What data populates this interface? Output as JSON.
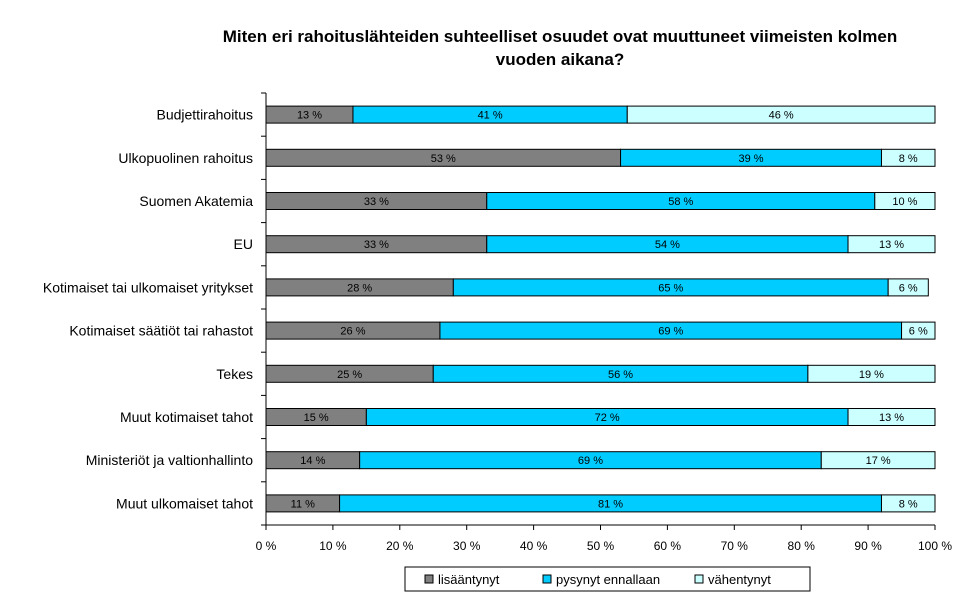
{
  "chart_data": {
    "type": "bar",
    "orientation": "horizontal",
    "stacked": true,
    "title_lines": [
      "Miten eri rahoituslähteiden suhteelliset osuudet ovat muuttuneet viimeisten kolmen",
      "vuoden aikana?"
    ],
    "categories": [
      "Budjettirahoitus",
      "Ulkopuolinen rahoitus",
      "Suomen Akatemia",
      "EU",
      "Kotimaiset tai ulkomaiset yritykset",
      "Kotimaiset säätiöt tai rahastot",
      "Tekes",
      "Muut kotimaiset tahot",
      "Ministeriöt ja valtionhallinto",
      "Muut ulkomaiset tahot"
    ],
    "series": [
      {
        "name": "lisääntynyt",
        "color": "#808080",
        "values": [
          13,
          53,
          33,
          33,
          28,
          26,
          25,
          15,
          14,
          11
        ]
      },
      {
        "name": "pysynyt ennallaan",
        "color": "#00ccff",
        "values": [
          41,
          39,
          58,
          54,
          65,
          69,
          56,
          72,
          69,
          81
        ]
      },
      {
        "name": "vähentynyt",
        "color": "#ccffff",
        "values": [
          46,
          8,
          10,
          13,
          6,
          6,
          19,
          13,
          17,
          8
        ]
      }
    ],
    "xlim": [
      0,
      100
    ],
    "xticks": [
      "0 %",
      "10 %",
      "20 %",
      "30 %",
      "40 %",
      "50 %",
      "60 %",
      "70 %",
      "80 %",
      "90 %",
      "100 %"
    ],
    "legend_position": "bottom",
    "grid": false
  }
}
